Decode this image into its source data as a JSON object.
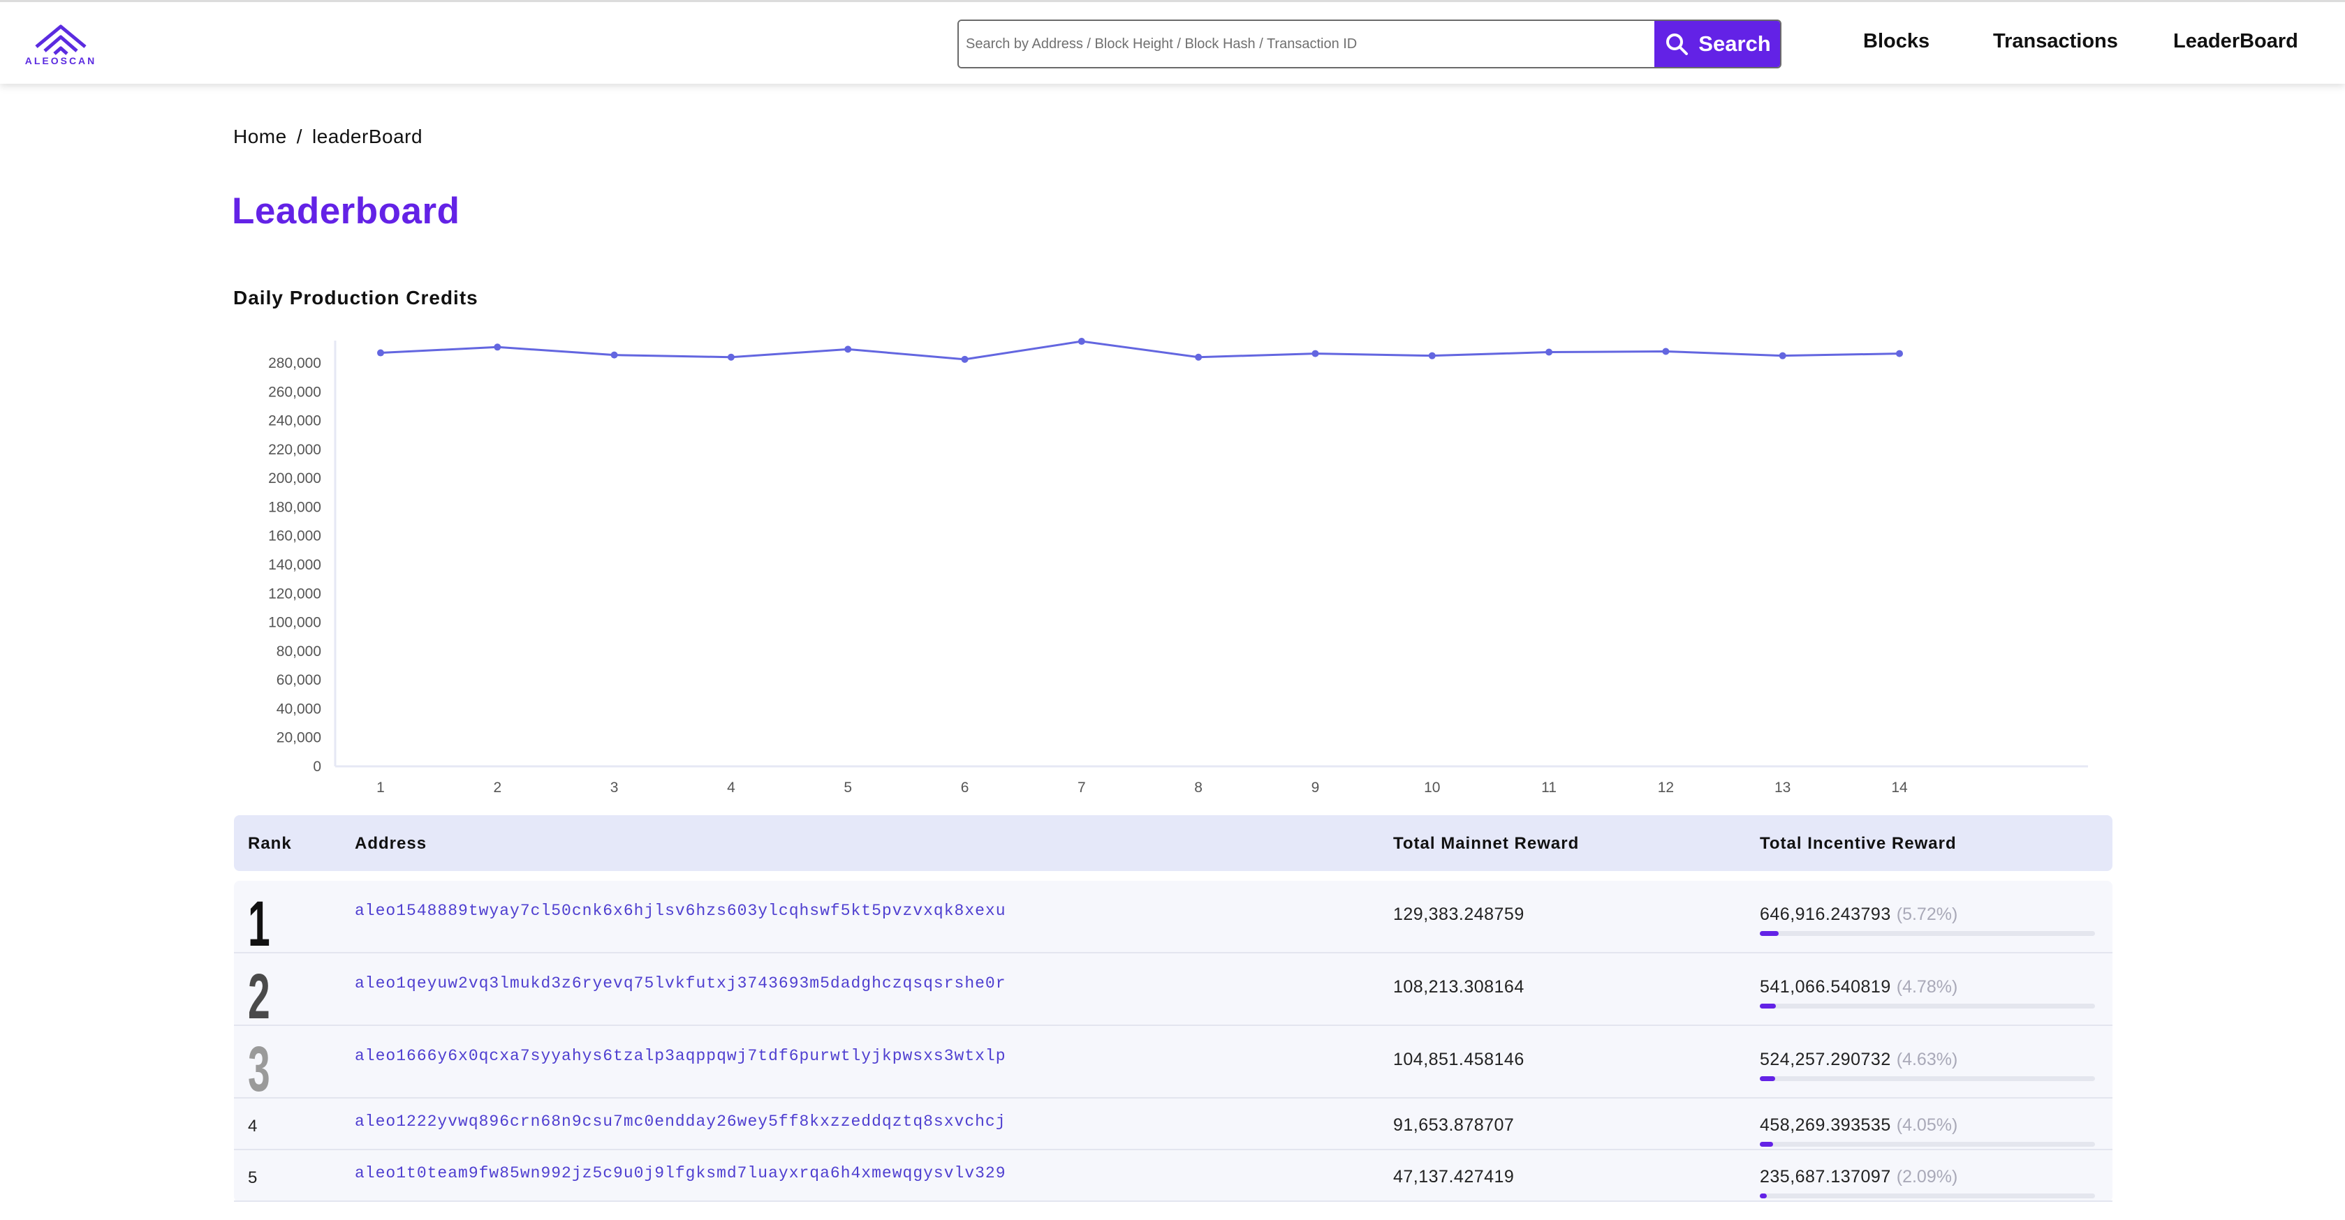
{
  "brand": {
    "logo_text": "ALEOSCAN"
  },
  "search": {
    "placeholder": "Search by Address / Block Height / Block Hash / Transaction ID",
    "button_label": "Search"
  },
  "nav": {
    "blocks": "Blocks",
    "transactions": "Transactions",
    "leaderboard": "LeaderBoard"
  },
  "breadcrumb": {
    "home": "Home",
    "separator": "/",
    "current": "leaderBoard"
  },
  "page": {
    "title": "Leaderboard",
    "chart_title": "Daily Production Credits"
  },
  "colors": {
    "accent": "#6322e6",
    "line": "#6366e0",
    "header_row": "#e5e8f9",
    "address": "#4f3fd0"
  },
  "chart_data": {
    "type": "line",
    "title": "Daily Production Credits",
    "x": [
      1,
      2,
      3,
      4,
      5,
      6,
      7,
      8,
      9,
      10,
      11,
      12,
      13,
      14
    ],
    "series": [
      {
        "values": [
          287000,
          291000,
          285500,
          284000,
          289500,
          282500,
          295000,
          284000,
          286500,
          285000,
          287500,
          288000,
          285000,
          286500
        ]
      }
    ],
    "ylim": [
      0,
      290000
    ],
    "yticks": [
      0,
      20000,
      40000,
      60000,
      80000,
      100000,
      120000,
      140000,
      160000,
      180000,
      200000,
      220000,
      240000,
      260000,
      280000
    ],
    "ytick_labels": [
      "0",
      "20,000",
      "40,000",
      "60,000",
      "80,000",
      "100,000",
      "120,000",
      "140,000",
      "160,000",
      "180,000",
      "200,000",
      "220,000",
      "240,000",
      "260,000",
      "280,000"
    ],
    "grid": false,
    "legend": "none"
  },
  "table": {
    "headers": {
      "rank": "Rank",
      "address": "Address",
      "mainnet": "Total Mainnet Reward",
      "incentive": "Total Incentive Reward"
    },
    "rows": [
      {
        "rank": "1",
        "address": "aleo1548889twyay7cl50cnk6x6hjlsv6hzs603ylcqhswf5kt5pvzvxqk8xexu",
        "mainnet": "129,383.248759",
        "incentive": "646,916.243793",
        "pct": "(5.72%)",
        "share": 0.0572
      },
      {
        "rank": "2",
        "address": "aleo1qeyuw2vq3lmukd3z6ryevq75lvkfutxj3743693m5dadghczqsqsrshe0r",
        "mainnet": "108,213.308164",
        "incentive": "541,066.540819",
        "pct": "(4.78%)",
        "share": 0.0478
      },
      {
        "rank": "3",
        "address": "aleo1666y6x0qcxa7syyahys6tzalp3aqppqwj7tdf6purwtlyjkpwsxs3wtxlp",
        "mainnet": "104,851.458146",
        "incentive": "524,257.290732",
        "pct": "(4.63%)",
        "share": 0.0463
      },
      {
        "rank": "4",
        "address": "aleo1222yvwq896crn68n9csu7mc0endday26wey5ff8kxzzeddqztq8sxvchcj",
        "mainnet": "91,653.878707",
        "incentive": "458,269.393535",
        "pct": "(4.05%)",
        "share": 0.0405
      },
      {
        "rank": "5",
        "address": "aleo1t0team9fw85wn992jz5c9u0j9lfgksmd7luayxrqa6h4xmewqgysvlv329",
        "mainnet": "47,137.427419",
        "incentive": "235,687.137097",
        "pct": "(2.09%)",
        "share": 0.0209
      }
    ]
  }
}
